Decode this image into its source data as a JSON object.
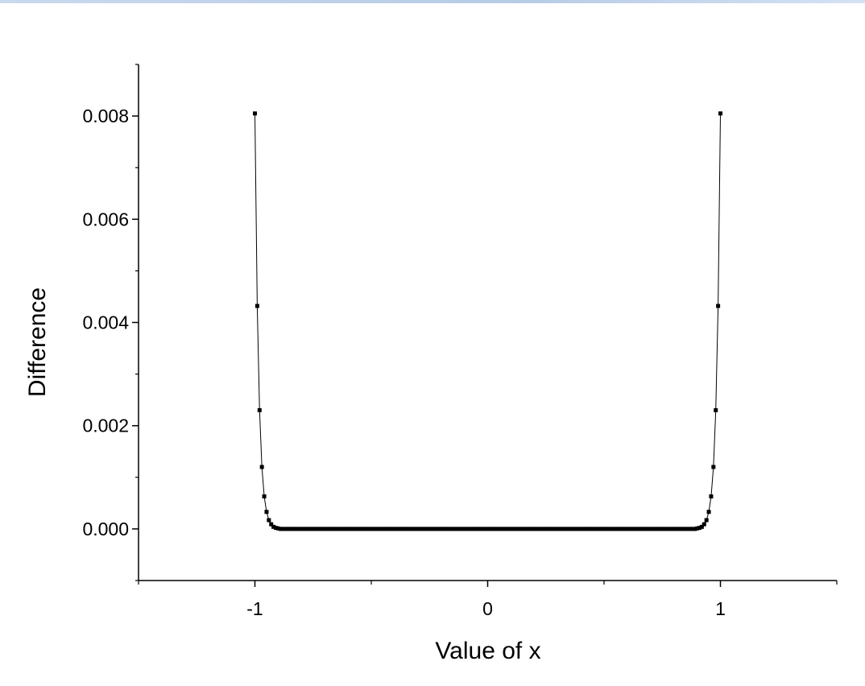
{
  "chart_data": {
    "type": "line",
    "title": "",
    "xlabel": "Value of x",
    "ylabel": "Difference",
    "xlim": [
      -1.5,
      1.5
    ],
    "ylim": [
      -0.001,
      0.009
    ],
    "x_ticks": [
      {
        "value": -1,
        "label": "-1"
      },
      {
        "value": 0,
        "label": "0"
      },
      {
        "value": 1,
        "label": "1"
      }
    ],
    "x_minor_ticks": [
      -1.5,
      -0.5,
      0.5,
      1.5
    ],
    "y_ticks": [
      {
        "value": 0.0,
        "label": "0.000"
      },
      {
        "value": 0.002,
        "label": "0.002"
      },
      {
        "value": 0.004,
        "label": "0.004"
      },
      {
        "value": 0.006,
        "label": "0.006"
      },
      {
        "value": 0.008,
        "label": "0.008"
      }
    ],
    "y_minor_ticks": [
      -0.001,
      0.001,
      0.003,
      0.005,
      0.007,
      0.009
    ],
    "grid": false,
    "legend": "none",
    "series": [
      {
        "color": "#000000",
        "marker": "square",
        "points": [
          [
            -1.0,
            0.00805
          ],
          [
            -0.99,
            0.00432
          ],
          [
            -0.98,
            0.0023
          ],
          [
            -0.97,
            0.0012
          ],
          [
            -0.96,
            0.00063
          ],
          [
            -0.95,
            0.00033
          ],
          [
            -0.94,
            0.00017
          ],
          [
            -0.93,
            9e-05
          ],
          [
            -0.92,
            4e-05
          ],
          [
            -0.91,
            2e-05
          ],
          [
            -0.9,
            1e-05
          ],
          [
            -0.89,
            0.0
          ],
          [
            0.89,
            0.0
          ],
          [
            0.9,
            1e-05
          ],
          [
            0.91,
            2e-05
          ],
          [
            0.92,
            4e-05
          ],
          [
            0.93,
            9e-05
          ],
          [
            0.94,
            0.00017
          ],
          [
            0.95,
            0.00033
          ],
          [
            0.96,
            0.00063
          ],
          [
            0.97,
            0.0012
          ],
          [
            0.98,
            0.0023
          ],
          [
            0.99,
            0.00432
          ],
          [
            1.0,
            0.00805
          ]
        ],
        "flat_region": {
          "from": -0.88,
          "to": 0.88,
          "step": 0.01,
          "value": 0.0
        }
      }
    ]
  }
}
